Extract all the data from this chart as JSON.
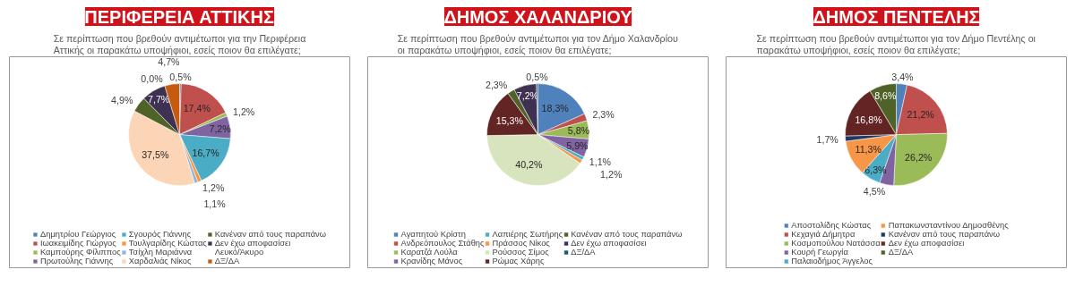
{
  "chart_data": [
    {
      "type": "pie",
      "title": "ΠΕΡΙΦΕΡΕΙΑ ΑΤΤΙΚΗΣ",
      "subtitle": "Σε περίπτωση που βρεθούν αντιμέτωποι για την Περιφέρεια Αττικής οι παρακάτω υποψήφιοι, εσείς ποιον θα επιλέγατε;",
      "legend": "bottom",
      "categories": [
        "Δημητρίου Γεώργιος",
        "Ιωακειμίδης Γιώργος",
        "Καμπούρης Φίλιππος",
        "Πρωτούλης Γιάννης",
        "Σγουρός Γιάννης",
        "Τουλγαρίδης Κώστας",
        "Τσίχλη Μαριάννα",
        "Χαρδαλιάς Νίκος",
        "Κανέναν από τους παραπάνω",
        "Δεν έχω αποφασίσει",
        "Λευκό/Άκυρο",
        "ΔΞ/ΔΑ"
      ],
      "values": [
        0.5,
        17.4,
        1.2,
        7.2,
        16.7,
        1.2,
        1.1,
        37.5,
        4.9,
        7.7,
        0.0,
        4.7
      ],
      "value_labels": [
        "0,5%",
        "17,4%",
        "1,2%",
        "7,2%",
        "16,7%",
        "1,2%",
        "1,1%",
        "37,5%",
        "4,9%",
        "7,7%",
        "0,0%",
        "4,7%"
      ],
      "colors": [
        "#4f81bd",
        "#c0504d",
        "#9bbb59",
        "#8064a2",
        "#4bacc6",
        "#f79646",
        "#95b3d7",
        "#fbd5b5",
        "#4f6228",
        "#3f3151",
        "#215968",
        "#c55a11"
      ]
    },
    {
      "type": "pie",
      "title": "ΔΗΜΟΣ ΧΑΛΑΝΔΡΙΟΥ",
      "subtitle": "Σε περίπτωση που βρεθούν αντιμέτωποι για τον Δήμο Χαλανδρίου οι παρακάτω υποψήφιοι, εσείς ποιον θα επιλέγατε;",
      "legend": "bottom",
      "categories": [
        "Αγαπητού Κρίστη",
        "Ανδρεόπουλος Στάθης",
        "Καρατζά Λούλα",
        "Κρανίδης Μάνος",
        "Λαπιέρης Σωτήρης",
        "Πράσσος Νίκος",
        "Ρούσσος Σίμος",
        "Ρώμας Χάρης",
        "Κανέναν από τους παραπάνω",
        "Δεν έχω αποφασίσει",
        "ΔΞ/ΔΑ"
      ],
      "values": [
        18.3,
        2.3,
        5.8,
        5.9,
        1.1,
        1.2,
        40.2,
        15.3,
        2.3,
        7.2,
        0.5
      ],
      "value_labels": [
        "18,3%",
        "2,3%",
        "5,8%",
        "5,9%",
        "1,1%",
        "1,2%",
        "40,2%",
        "15,3%",
        "2,3%",
        "7,2%",
        "0,5%"
      ],
      "colors": [
        "#4f81bd",
        "#c0504d",
        "#9bbb59",
        "#8064a2",
        "#4bacc6",
        "#f79646",
        "#d7e4bd",
        "#632523",
        "#4f6228",
        "#3f3151",
        "#215968"
      ]
    },
    {
      "type": "pie",
      "title": "ΔΗΜΟΣ ΠΕΝΤΕΛΗΣ",
      "subtitle": "Σε περίπτωση που βρεθούν αντιμέτωποι για τον Δήμο Πεντέλης οι παρακάτω υποψήφιοι, εσείς ποιον θα επιλέγατε;",
      "legend": "bottom",
      "categories": [
        "Αποστολίδης Κώστας",
        "Κεχαγιά Δήμητρα",
        "Κοσμοπούλου Νατάσσα",
        "Κουρή Γεωργία",
        "Παλαιοδήμος Άγγελος",
        "Παπακωνσταντίνου Δημοσθένης",
        "Κανέναν από τους παραπάνω",
        "Δεν έχω αποφασίσει",
        "ΔΞ/ΔΑ"
      ],
      "values": [
        3.4,
        21.2,
        26.2,
        4.5,
        6.3,
        11.3,
        1.7,
        16.8,
        8.6
      ],
      "value_labels": [
        "3,4%",
        "21,2%",
        "26,2%",
        "4,5%",
        "6,3%",
        "11,3%",
        "1,7%",
        "16,8%",
        "8,6%"
      ],
      "colors": [
        "#4f81bd",
        "#c0504d",
        "#9bbb59",
        "#8064a2",
        "#4bacc6",
        "#f79646",
        "#1f3864",
        "#632523",
        "#4f6228"
      ]
    }
  ]
}
